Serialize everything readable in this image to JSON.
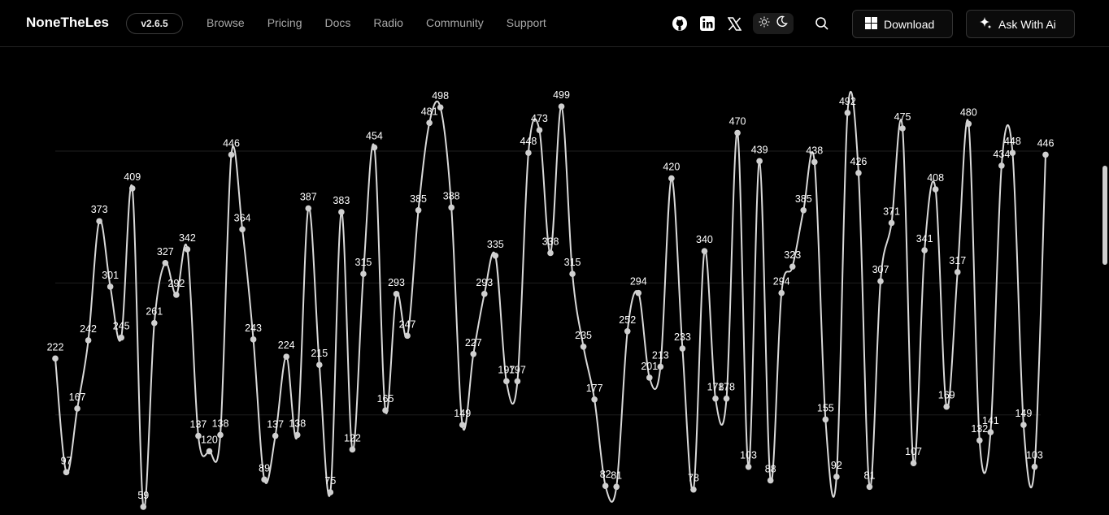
{
  "brand": "NoneTheLes",
  "version": "v2.6.5",
  "nav": [
    "Browse",
    "Pricing",
    "Docs",
    "Radio",
    "Community",
    "Support"
  ],
  "icons": [
    "github-icon",
    "linkedin-icon",
    "x-icon",
    "sun-icon",
    "moon-icon",
    "search-icon",
    "windows-icon",
    "sparkle-icon"
  ],
  "buttons": {
    "download": "Download",
    "ask_ai": "Ask With Ai"
  },
  "colors": {
    "background": "#000000",
    "line": "#d9d9d9",
    "grid": "#1e1e1e",
    "nav_text": "#a8a8a8"
  },
  "chart_data": {
    "type": "line",
    "smooth": true,
    "grid": true,
    "ylim": [
      50,
      520
    ],
    "values": [
      222,
      97,
      167,
      242,
      373,
      301,
      245,
      409,
      59,
      261,
      327,
      292,
      342,
      137,
      120,
      138,
      446,
      364,
      243,
      89,
      137,
      224,
      138,
      387,
      215,
      75,
      383,
      122,
      315,
      454,
      165,
      293,
      247,
      385,
      481,
      498,
      388,
      149,
      227,
      293,
      335,
      197,
      197,
      448,
      473,
      338,
      499,
      315,
      235,
      177,
      82,
      81,
      252,
      294,
      201,
      213,
      420,
      233,
      78,
      340,
      178,
      178,
      470,
      103,
      439,
      88,
      294,
      323,
      385,
      438,
      155,
      92,
      492,
      426,
      81,
      307,
      371,
      475,
      107,
      341,
      408,
      169,
      317,
      480,
      132,
      141,
      434,
      448,
      149,
      103,
      446
    ]
  }
}
